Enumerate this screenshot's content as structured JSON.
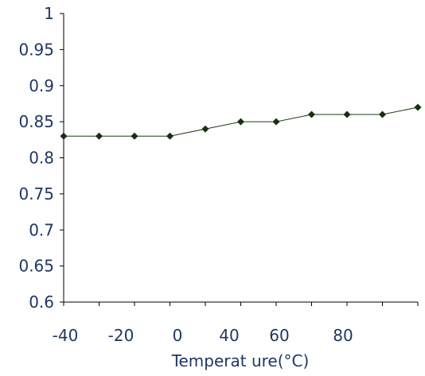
{
  "chart_data": {
    "type": "line",
    "title": "",
    "xlabel": "Temperat ure(°C)",
    "ylabel": "",
    "x": [
      -40,
      -30,
      -20,
      -10,
      0,
      10,
      20,
      30,
      40,
      50,
      60
    ],
    "series": [
      {
        "values": [
          0.83,
          0.83,
          0.83,
          0.83,
          0.84,
          0.85,
          0.85,
          0.86,
          0.86,
          0.86,
          0.87
        ]
      }
    ],
    "xlim": [
      -40,
      60
    ],
    "ylim": [
      0.6,
      1.0
    ],
    "y_ticks": [
      "0.6",
      "0.65",
      "0.7",
      "0.75",
      "0.8",
      "0.85",
      "0.9",
      "0.95",
      "1"
    ],
    "y_tick_values": [
      0.6,
      0.65,
      0.7,
      0.75,
      0.8,
      0.85,
      0.9,
      0.95,
      1.0
    ],
    "x_tick_labels": [
      "-40",
      "-20",
      "0",
      "40",
      "60",
      "80"
    ],
    "grid": false,
    "legend": "none",
    "marker": "diamond",
    "colors": {
      "series": "#1e3d14",
      "marker": "#163010",
      "axis": "#000000",
      "text": "#1f3763"
    }
  }
}
